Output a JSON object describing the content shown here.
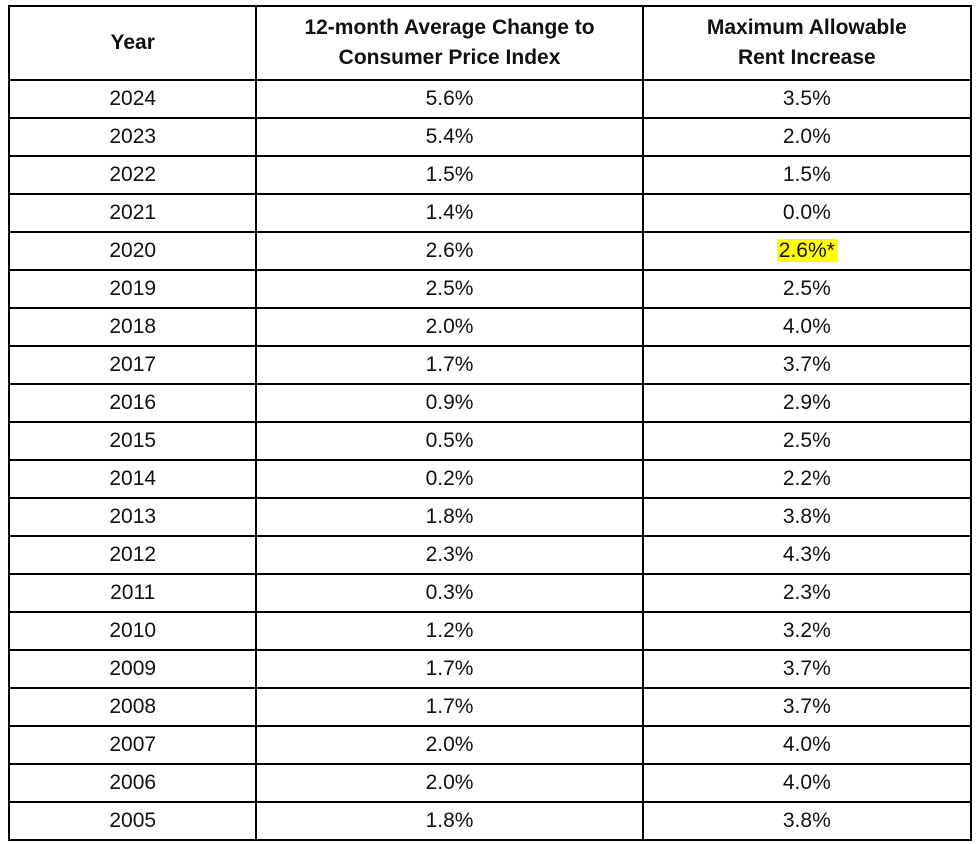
{
  "table": {
    "header": [
      [
        "Year"
      ],
      [
        "12-month Average Change to",
        "Consumer Price Index"
      ],
      [
        "Maximum Allowable",
        "Rent Increase"
      ]
    ],
    "rows": [
      [
        "2024",
        "5.6%",
        "3.5%"
      ],
      [
        "2023",
        "5.4%",
        "2.0%"
      ],
      [
        "2022",
        "1.5%",
        "1.5%"
      ],
      [
        "2021",
        "1.4%",
        "0.0%"
      ],
      [
        "2020",
        "2.6%",
        "2.6%*"
      ],
      [
        "2019",
        "2.5%",
        "2.5%"
      ],
      [
        "2018",
        "2.0%",
        "4.0%"
      ],
      [
        "2017",
        "1.7%",
        "3.7%"
      ],
      [
        "2016",
        "0.9%",
        "2.9%"
      ],
      [
        "2015",
        "0.5%",
        "2.5%"
      ],
      [
        "2014",
        "0.2%",
        "2.2%"
      ],
      [
        "2013",
        "1.8%",
        "3.8%"
      ],
      [
        "2012",
        "2.3%",
        "4.3%"
      ],
      [
        "2011",
        "0.3%",
        "2.3%"
      ],
      [
        "2010",
        "1.2%",
        "3.2%"
      ],
      [
        "2009",
        "1.7%",
        "3.7%"
      ],
      [
        "2008",
        "1.7%",
        "3.7%"
      ],
      [
        "2007",
        "2.0%",
        "4.0%"
      ],
      [
        "2006",
        "2.0%",
        "4.0%"
      ],
      [
        "2005",
        "1.8%",
        "3.8%"
      ]
    ],
    "highlight": {
      "row": 4,
      "column": 2,
      "color": "#ffff00"
    }
  }
}
